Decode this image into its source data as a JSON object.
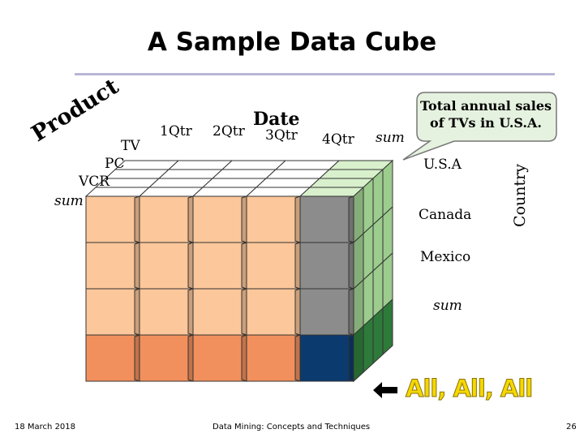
{
  "slide": {
    "title": "A Sample Data Cube",
    "date_footer": "18 March 2018",
    "course_footer": "Data Mining: Concepts and Techniques",
    "page_number": "26"
  },
  "cube": {
    "date_axis": {
      "label": "Date",
      "values": [
        "1Qtr",
        "2Qtr",
        "3Qtr",
        "4Qtr",
        "sum"
      ]
    },
    "product_axis": {
      "label": "Product",
      "values": [
        "TV",
        "PC",
        "VCR",
        "sum"
      ]
    },
    "country_axis": {
      "label": "Country",
      "values": [
        "U.S.A",
        "Canada",
        "Mexico",
        "sum"
      ]
    },
    "colors": {
      "front_regular": "#fcc79a",
      "front_sum_row": "#f2905d",
      "front_sum_col": "#8c8c8c",
      "front_corner": "#0b3a6e",
      "side_regular": "#9ccc8e",
      "side_sum": "#2e7a3a"
    }
  },
  "callout": {
    "text_line1": "Total annual sales",
    "text_line2": "of TVs in U.S.A."
  },
  "highlight": {
    "text": "All, All, All"
  }
}
